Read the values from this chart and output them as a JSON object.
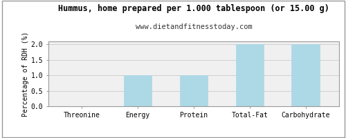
{
  "title": "Hummus, home prepared per 1.000 tablespoon (or 15.00 g)",
  "subtitle": "www.dietandfitnesstoday.com",
  "categories": [
    "Threonine",
    "Energy",
    "Protein",
    "Total-Fat",
    "Carbohydrate"
  ],
  "values": [
    0.0,
    1.0,
    1.0,
    2.0,
    2.0
  ],
  "bar_color": "#add8e6",
  "bar_edge_color": "#add8e6",
  "ylabel": "Percentage of RDH (%)",
  "ylim": [
    0,
    2.1
  ],
  "yticks": [
    0.0,
    0.5,
    1.0,
    1.5,
    2.0
  ],
  "background_color": "#ffffff",
  "plot_bg_color": "#f0f0f0",
  "grid_color": "#d0d0d0",
  "title_fontsize": 8.5,
  "subtitle_fontsize": 7.5,
  "tick_fontsize": 7,
  "ylabel_fontsize": 7,
  "border_color": "#999999"
}
